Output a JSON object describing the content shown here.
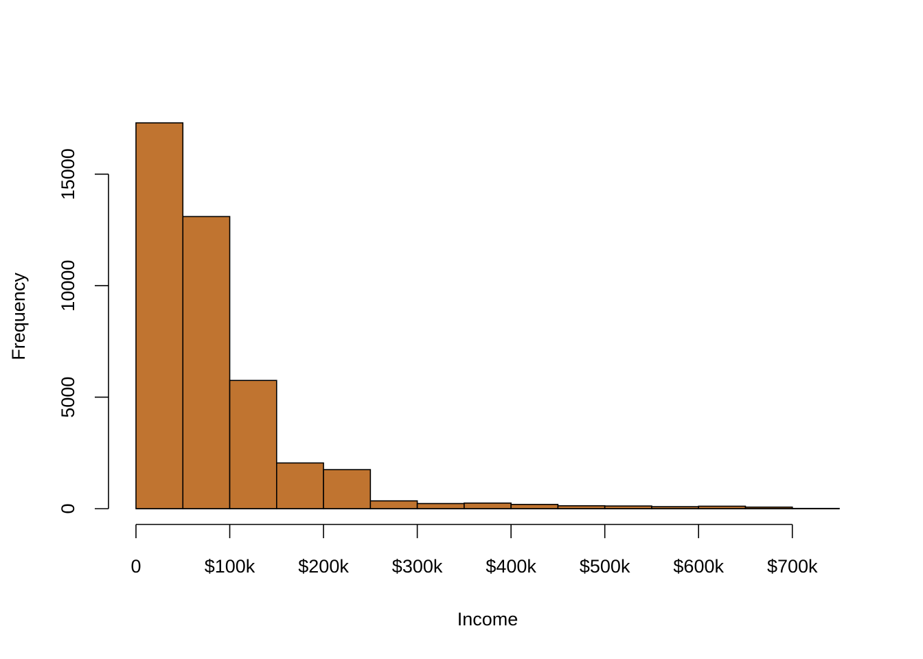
{
  "chart_data": {
    "type": "bar",
    "subtype": "histogram",
    "title": "",
    "xlabel": "Income",
    "ylabel": "Frequency",
    "bin_width": 50000,
    "bins": [
      {
        "start": 0,
        "end": 50000,
        "count": 17300
      },
      {
        "start": 50000,
        "end": 100000,
        "count": 13100
      },
      {
        "start": 100000,
        "end": 150000,
        "count": 5750
      },
      {
        "start": 150000,
        "end": 200000,
        "count": 2050
      },
      {
        "start": 200000,
        "end": 250000,
        "count": 1750
      },
      {
        "start": 250000,
        "end": 300000,
        "count": 350
      },
      {
        "start": 300000,
        "end": 350000,
        "count": 230
      },
      {
        "start": 350000,
        "end": 400000,
        "count": 250
      },
      {
        "start": 400000,
        "end": 450000,
        "count": 190
      },
      {
        "start": 450000,
        "end": 500000,
        "count": 130
      },
      {
        "start": 500000,
        "end": 550000,
        "count": 120
      },
      {
        "start": 550000,
        "end": 600000,
        "count": 90
      },
      {
        "start": 600000,
        "end": 650000,
        "count": 110
      },
      {
        "start": 650000,
        "end": 700000,
        "count": 70
      },
      {
        "start": 700000,
        "end": 750000,
        "count": 10
      }
    ],
    "xlim": [
      0,
      750000
    ],
    "ylim": [
      0,
      17300
    ],
    "x_ticks": [
      {
        "value": 0,
        "label": "0"
      },
      {
        "value": 100000,
        "label": "$100k"
      },
      {
        "value": 200000,
        "label": "$200k"
      },
      {
        "value": 300000,
        "label": "$300k"
      },
      {
        "value": 400000,
        "label": "$400k"
      },
      {
        "value": 500000,
        "label": "$500k"
      },
      {
        "value": 600000,
        "label": "$600k"
      },
      {
        "value": 700000,
        "label": "$700k"
      }
    ],
    "y_ticks": [
      {
        "value": 0,
        "label": "0"
      },
      {
        "value": 5000,
        "label": "5000"
      },
      {
        "value": 10000,
        "label": "10000"
      },
      {
        "value": 15000,
        "label": "15000"
      }
    ],
    "grid": false,
    "legend": "none",
    "bar_color": "#C07430",
    "edge_color": "#000000"
  }
}
